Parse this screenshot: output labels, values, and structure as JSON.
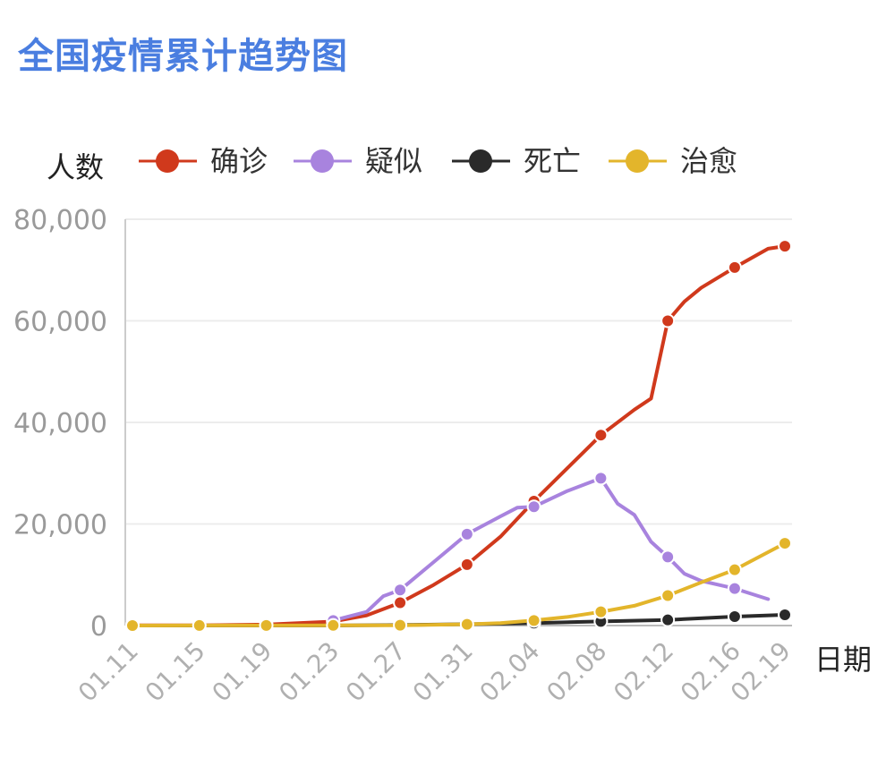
{
  "title": "全国疫情累计趋势图",
  "chart_data": {
    "type": "line",
    "ylabel": "人数",
    "xlabel": "日期",
    "ylim": [
      0,
      80000
    ],
    "yticks": [
      0,
      20000,
      40000,
      60000,
      80000
    ],
    "ytick_labels": [
      "0",
      "20,000",
      "40,000",
      "60,000",
      "80,000"
    ],
    "xticks": [
      "01.11",
      "01.15",
      "01.19",
      "01.23",
      "01.27",
      "01.31",
      "02.04",
      "02.08",
      "02.12",
      "02.16",
      "02.19"
    ],
    "grid": true,
    "legend_position": "top",
    "series": [
      {
        "name": "确诊",
        "color": "#d0391c",
        "points": [
          [
            "01.11",
            41
          ],
          [
            "01.15",
            41
          ],
          [
            "01.19",
            200
          ],
          [
            "01.23",
            800
          ],
          [
            "01.25",
            2000
          ],
          [
            "01.27",
            4500
          ],
          [
            "01.29",
            8000
          ],
          [
            "01.31",
            12000
          ],
          [
            "02.02",
            17500
          ],
          [
            "02.04",
            24500
          ],
          [
            "02.06",
            31000
          ],
          [
            "02.08",
            37500
          ],
          [
            "02.10",
            42500
          ],
          [
            "02.11",
            44700
          ],
          [
            "02.12",
            60000
          ],
          [
            "02.13",
            63800
          ],
          [
            "02.14",
            66500
          ],
          [
            "02.16",
            70500
          ],
          [
            "02.18",
            74200
          ],
          [
            "02.19",
            74700
          ]
        ],
        "markers": [
          "01.11",
          "01.15",
          "01.19",
          "01.23",
          "01.27",
          "01.31",
          "02.04",
          "02.08",
          "02.12",
          "02.16",
          "02.19"
        ]
      },
      {
        "name": "疑似",
        "color": "#a883de",
        "points": [
          [
            "01.23",
            1000
          ],
          [
            "01.25",
            2700
          ],
          [
            "01.26",
            5800
          ],
          [
            "01.27",
            7000
          ],
          [
            "01.29",
            12500
          ],
          [
            "01.31",
            18000
          ],
          [
            "02.02",
            21500
          ],
          [
            "02.03",
            23200
          ],
          [
            "02.04",
            23400
          ],
          [
            "02.06",
            26500
          ],
          [
            "02.08",
            29000
          ],
          [
            "02.09",
            24000
          ],
          [
            "02.10",
            21800
          ],
          [
            "02.11",
            16500
          ],
          [
            "02.12",
            13500
          ],
          [
            "02.13",
            10200
          ],
          [
            "02.14",
            8800
          ],
          [
            "02.16",
            7300
          ],
          [
            "02.18",
            5200
          ]
        ],
        "markers": [
          "01.23",
          "01.27",
          "01.31",
          "02.04",
          "02.08",
          "02.12",
          "02.16"
        ]
      },
      {
        "name": "死亡",
        "color": "#2a2a2a",
        "points": [
          [
            "01.11",
            1
          ],
          [
            "01.15",
            2
          ],
          [
            "01.19",
            3
          ],
          [
            "01.23",
            25
          ],
          [
            "01.27",
            106
          ],
          [
            "01.31",
            259
          ],
          [
            "02.04",
            490
          ],
          [
            "02.08",
            811
          ],
          [
            "02.12",
            1113
          ],
          [
            "02.16",
            1770
          ],
          [
            "02.19",
            2118
          ]
        ],
        "markers": [
          "01.11",
          "01.15",
          "01.19",
          "01.23",
          "01.27",
          "01.31",
          "02.04",
          "02.08",
          "02.12",
          "02.16",
          "02.19"
        ]
      },
      {
        "name": "治愈",
        "color": "#e3b52b",
        "points": [
          [
            "01.11",
            0
          ],
          [
            "01.15",
            12
          ],
          [
            "01.19",
            25
          ],
          [
            "01.23",
            34
          ],
          [
            "01.27",
            60
          ],
          [
            "01.31",
            243
          ],
          [
            "02.02",
            500
          ],
          [
            "02.04",
            1000
          ],
          [
            "02.06",
            1700
          ],
          [
            "02.08",
            2700
          ],
          [
            "02.10",
            3900
          ],
          [
            "02.12",
            5900
          ],
          [
            "02.14",
            8500
          ],
          [
            "02.16",
            11000
          ],
          [
            "02.19",
            16200
          ]
        ],
        "markers": [
          "01.11",
          "01.15",
          "01.19",
          "01.23",
          "01.27",
          "01.31",
          "02.04",
          "02.08",
          "02.12",
          "02.16",
          "02.19"
        ]
      }
    ]
  }
}
